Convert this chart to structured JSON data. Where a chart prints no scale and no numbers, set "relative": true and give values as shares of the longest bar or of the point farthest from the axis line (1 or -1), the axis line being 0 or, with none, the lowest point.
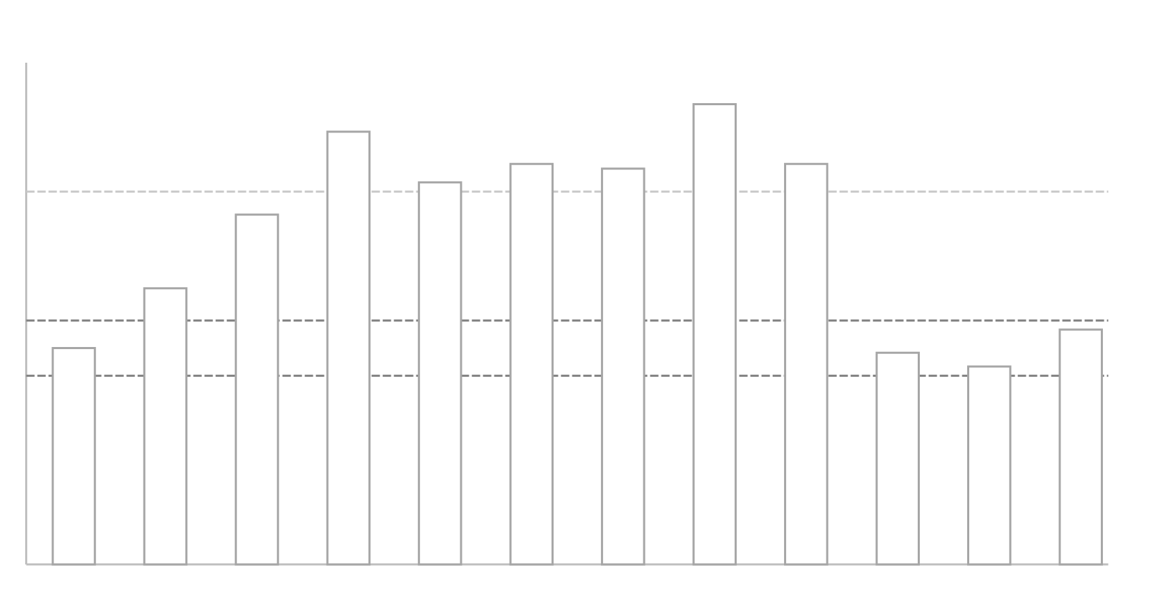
{
  "chart_data": {
    "type": "bar",
    "relative": true,
    "categories": [
      null,
      null,
      null,
      null,
      null,
      null,
      null,
      null,
      null,
      null,
      null,
      null
    ],
    "values": [
      0.47,
      0.6,
      0.76,
      0.94,
      0.83,
      0.87,
      0.86,
      1,
      0.87,
      0.46,
      0.43,
      0.51
    ],
    "color": "#ffffff",
    "ref_lines": [
      {
        "axis": "y",
        "value": 0.81,
        "color": "#c8c8c8"
      },
      {
        "axis": "y",
        "value": 0.53,
        "color": "#808080"
      },
      {
        "axis": "y",
        "value": 0.41,
        "color": "#808080"
      }
    ]
  }
}
